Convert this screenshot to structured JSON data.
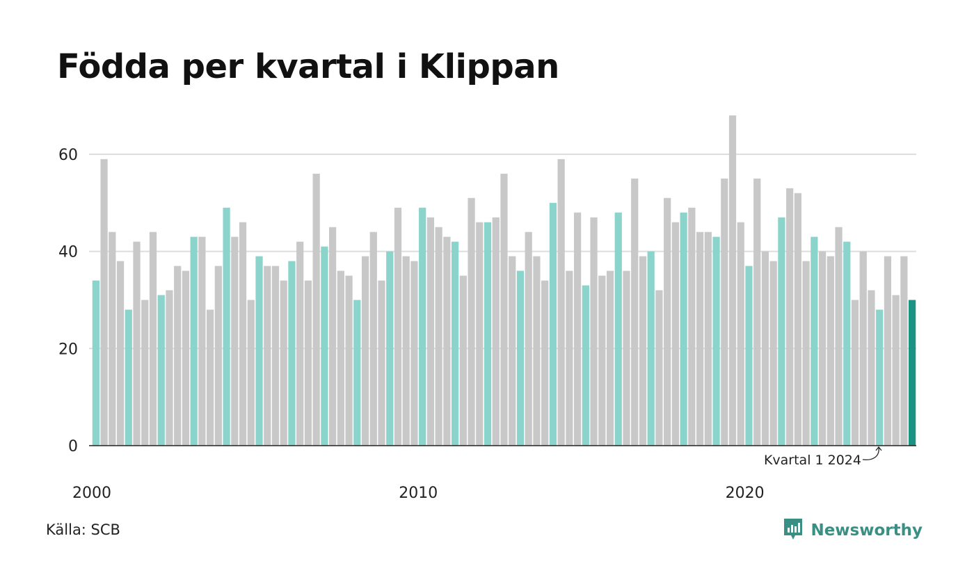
{
  "title": "Födda per kvartal i Klippan",
  "source": "Källa: SCB",
  "brand": {
    "name": "Newsworthy",
    "icon": "newsworthy-logo-icon"
  },
  "colors": {
    "q1": "#8ad4cb",
    "other": "#c8c8c8",
    "highlight": "#1a9382",
    "grid": "#dddddd",
    "axis": "#222222",
    "brand": "#3a8f84"
  },
  "chart_data": {
    "type": "bar",
    "x_tick_labels": [
      "2000",
      "2010",
      "2020"
    ],
    "y_ticks": [
      0,
      20,
      40,
      60
    ],
    "ylim": [
      0,
      68
    ],
    "grid": true,
    "annotation": "Kvartal 1 2024",
    "series": [
      {
        "values": [
          34,
          59,
          44,
          38,
          28,
          42,
          30,
          44,
          31,
          32,
          37,
          36,
          43,
          43,
          28,
          37,
          49,
          43,
          46,
          30,
          39,
          37,
          37,
          34,
          38,
          42,
          34,
          56,
          41,
          45,
          36,
          35,
          30,
          39,
          44,
          34,
          40,
          49,
          39,
          38,
          49,
          47,
          45,
          43,
          42,
          35,
          51,
          46,
          46,
          47,
          56,
          39,
          36,
          44,
          39,
          34,
          50,
          59,
          36,
          48,
          33,
          47,
          35,
          36,
          48,
          36,
          55,
          39,
          40,
          32,
          51,
          46,
          48,
          49,
          44,
          44,
          43,
          55,
          68,
          46,
          37,
          55,
          40,
          38,
          47,
          53,
          52,
          38,
          43,
          40,
          39,
          45,
          42,
          30,
          40,
          32,
          28,
          39,
          31,
          39,
          30
        ]
      }
    ]
  }
}
